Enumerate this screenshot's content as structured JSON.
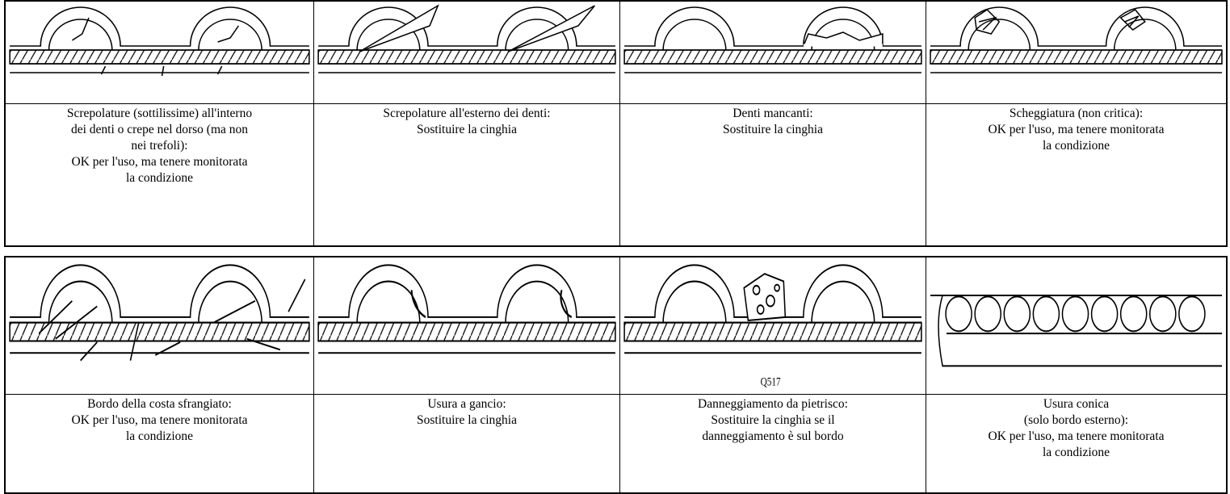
{
  "tables": [
    {
      "cells": [
        {
          "caption": [
            "Screpolature (sottilissime) all'interno",
            "dei denti o crepe nel dorso (ma non",
            "nei trefoli):",
            "OK per l'uso, ma tenere monitorata",
            "la condizione"
          ]
        },
        {
          "caption": [
            "Screpolature all'esterno dei denti:",
            "Sostituire la cinghia"
          ]
        },
        {
          "caption": [
            "Denti mancanti:",
            "Sostituire la cinghia"
          ]
        },
        {
          "caption": [
            "Scheggiatura (non critica):",
            "OK per l'uso, ma tenere monitorata",
            "la condizione"
          ]
        }
      ]
    },
    {
      "cells": [
        {
          "caption": [
            "Bordo della costa sfrangiato:",
            "OK per l'uso, ma tenere monitorata",
            "la condizione"
          ]
        },
        {
          "caption": [
            "Usura a gancio:",
            "Sostituire la cinghia"
          ]
        },
        {
          "caption": [
            "Danneggiamento da pietrisco:",
            "Sostituire la cinghia se il",
            "danneggiamento è sul bordo"
          ],
          "figure_label": "Q517"
        },
        {
          "caption": [
            "Usura conica",
            "(solo bordo esterno):",
            "OK per l'uso, ma tenere monitorata",
            "la condizione"
          ]
        }
      ]
    }
  ]
}
